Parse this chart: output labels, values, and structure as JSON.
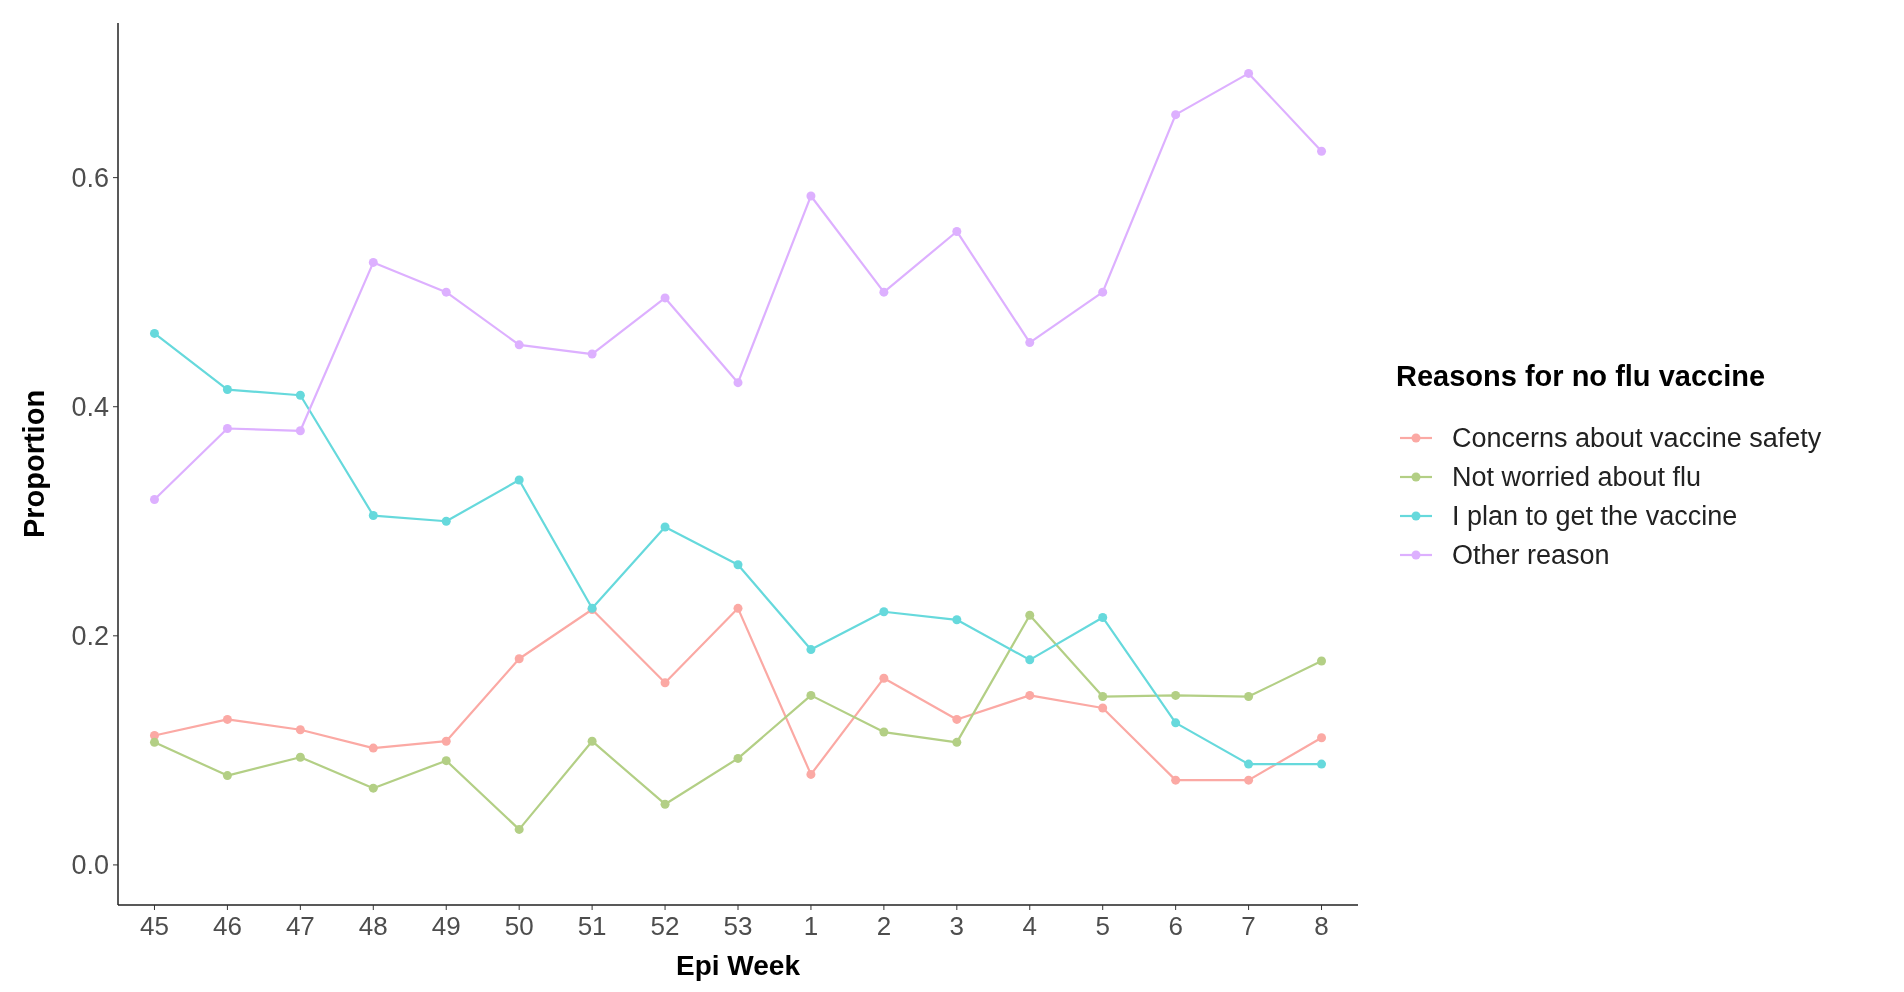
{
  "chart_data": {
    "type": "line",
    "xlabel": "Epi Week",
    "ylabel": "Proportion",
    "legend_title": "Reasons for no flu vaccine",
    "legend": "right",
    "marker": "circle",
    "line_style": "solid",
    "grid": false,
    "categories": [
      "45",
      "46",
      "47",
      "48",
      "49",
      "50",
      "51",
      "52",
      "53",
      "1",
      "2",
      "3",
      "4",
      "5",
      "6",
      "7",
      "8"
    ],
    "ylim": [
      -0.035,
      0.735
    ],
    "yticks": [
      {
        "value": 0,
        "label": "0.0"
      },
      0.2,
      0.4,
      0.6
    ],
    "series": [
      {
        "name": "Concerns about vaccine safety",
        "color": "#fba9a4",
        "values": [
          0.113,
          0.127,
          0.118,
          0.102,
          0.108,
          0.18,
          0.223,
          0.159,
          0.224,
          0.079,
          0.163,
          0.127,
          0.148,
          0.137,
          0.074,
          0.074,
          0.111
        ]
      },
      {
        "name": "Not worried about flu",
        "color": "#b3cf85",
        "values": [
          0.107,
          0.078,
          0.094,
          0.067,
          0.091,
          0.031,
          0.108,
          0.053,
          0.093,
          0.148,
          0.116,
          0.107,
          0.218,
          0.147,
          0.148,
          0.147,
          0.178
        ]
      },
      {
        "name": "I plan to get the vaccine",
        "color": "#66d9dc",
        "values": [
          0.464,
          0.415,
          0.41,
          0.305,
          0.3,
          0.336,
          0.224,
          0.295,
          0.262,
          0.188,
          0.221,
          0.214,
          0.179,
          0.216,
          0.124,
          0.088,
          0.088
        ]
      },
      {
        "name": "Other reason",
        "color": "#ddb0ff",
        "values": [
          0.319,
          0.381,
          0.379,
          0.526,
          0.5,
          0.454,
          0.446,
          0.495,
          0.421,
          0.584,
          0.5,
          0.553,
          0.456,
          0.5,
          0.655,
          0.691,
          0.623
        ]
      }
    ]
  }
}
